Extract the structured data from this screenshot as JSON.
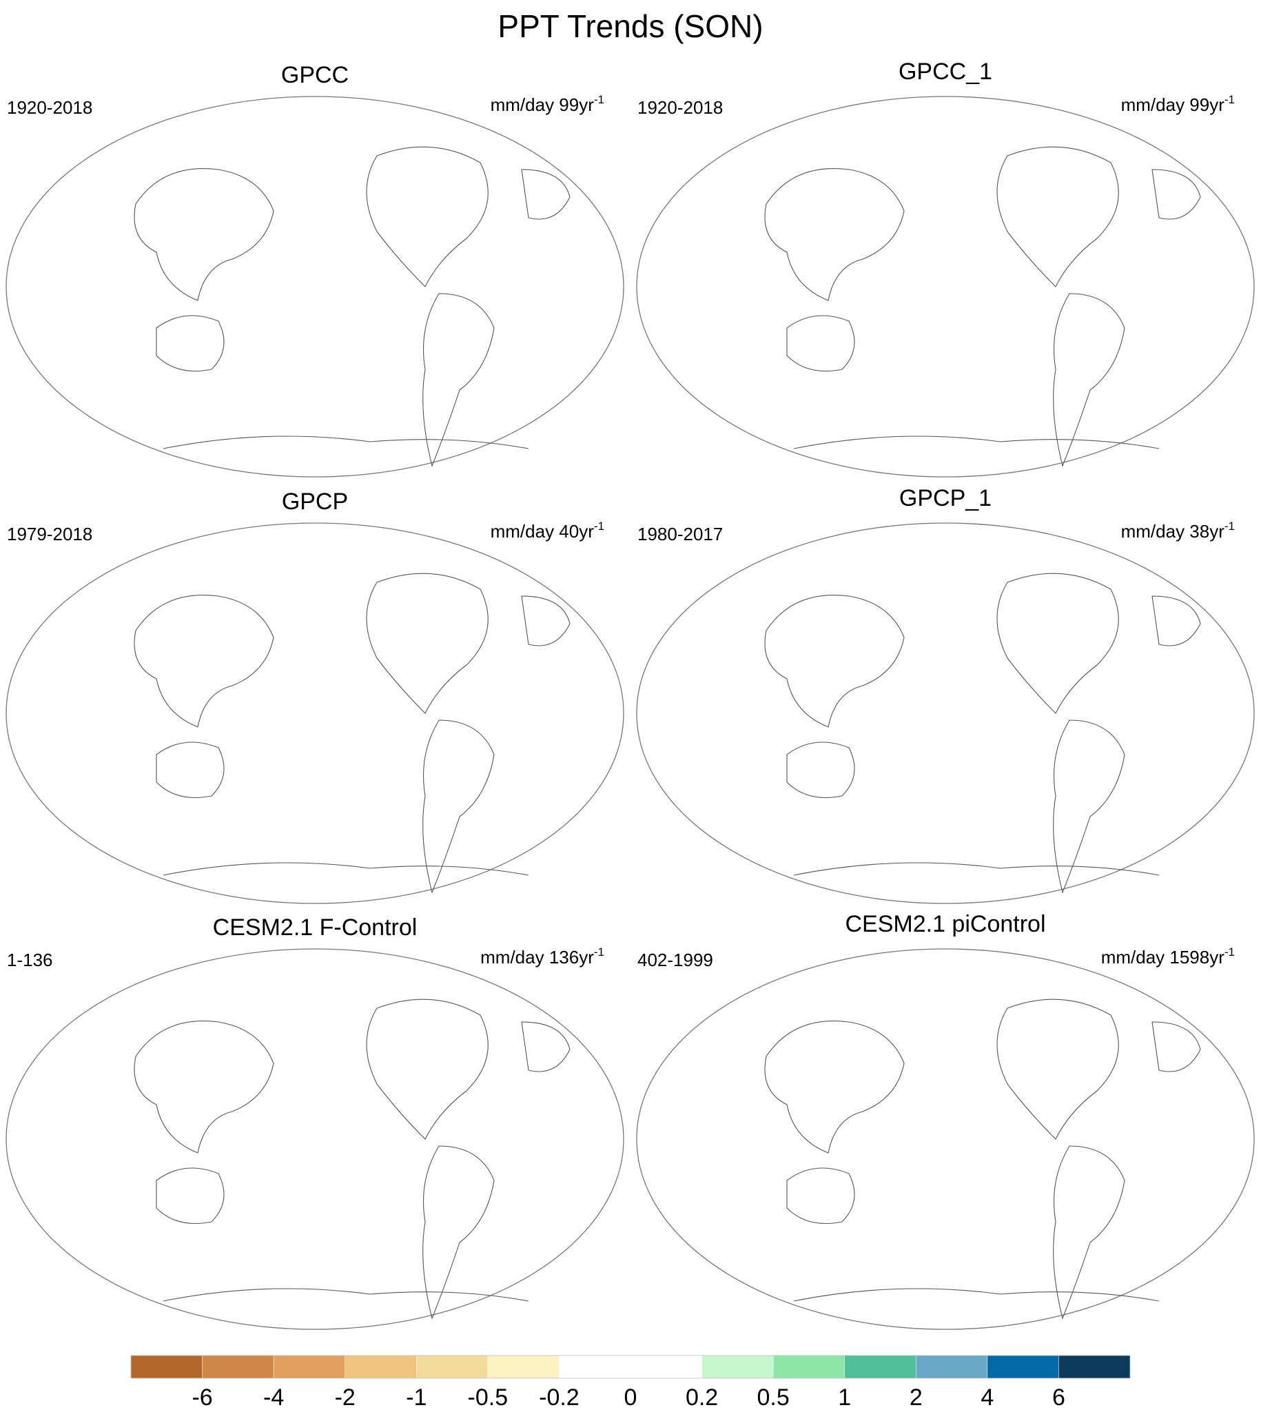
{
  "title": "PPT Trends (SON)",
  "panels": [
    {
      "title": "GPCC",
      "period": "1920-2018",
      "units": "mm/day 99yr",
      "exponent": "-1"
    },
    {
      "title": "GPCC_1",
      "period": "1920-2018",
      "units": "mm/day 99yr",
      "exponent": "-1"
    },
    {
      "title": "GPCP",
      "period": "1979-2018",
      "units": "mm/day 40yr",
      "exponent": "-1"
    },
    {
      "title": "GPCP_1",
      "period": "1980-2017",
      "units": "mm/day 38yr",
      "exponent": "-1"
    },
    {
      "title": "CESM2.1 F-Control",
      "period": "1-136",
      "units": "mm/day 136yr",
      "exponent": "-1"
    },
    {
      "title": "CESM2.1 piControl",
      "period": "402-1999",
      "units": "mm/day 1598yr",
      "exponent": "-1"
    }
  ],
  "colorbar": {
    "levels": [
      -6,
      -4,
      -2,
      -1,
      -0.5,
      -0.2,
      0,
      0.2,
      0.5,
      1,
      2,
      4,
      6
    ],
    "colors": [
      "#b3672b",
      "#cf8646",
      "#dfa05f",
      "#f2c27f",
      "#f2da9c",
      "#fdf1bf",
      "#ffffff",
      "#ffffff",
      "#c7f8cc",
      "#8de6a8",
      "#52bf9b",
      "#6aa7c6",
      "#0369a7",
      "#0c3b5c"
    ]
  }
}
